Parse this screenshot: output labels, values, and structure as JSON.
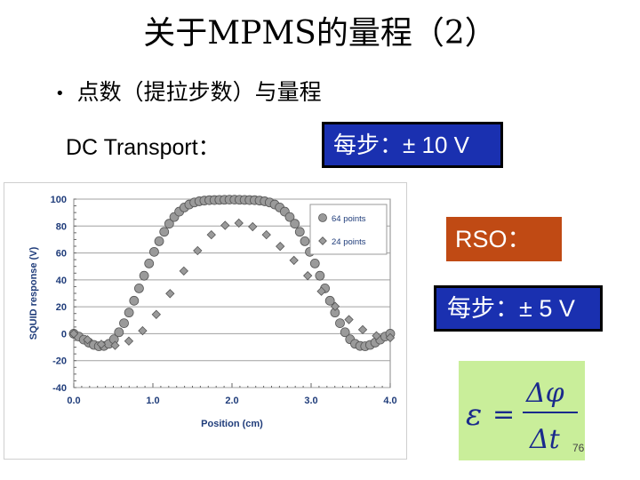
{
  "slide": {
    "title": "关于MPMS的量程（2）",
    "bullet": "点数（提拉步数）与量程",
    "dc_label": "DC Transport：",
    "dc_box": "每步：± 10 V",
    "rso_label": "RSO：",
    "rso_box": "每步：± 5 V",
    "slide_number": "76",
    "formula": {
      "lhs": "ε",
      "eq": "=",
      "num": "Δφ",
      "den": "Δt"
    },
    "colors": {
      "blue_box": "#1a30b0",
      "orange_box": "#c04a14",
      "formula_bg": "#c9ee9a",
      "axis_label": "#1f3c7a"
    }
  },
  "chart_data": {
    "type": "scatter",
    "xlabel": "Position (cm)",
    "ylabel": "SQUID response (V)",
    "xlim": [
      0,
      4
    ],
    "ylim": [
      -40,
      100
    ],
    "xticks": [
      "0.0",
      "1.0",
      "2.0",
      "3.0",
      "4.0"
    ],
    "yticks": [
      "100",
      "80",
      "60",
      "40",
      "20",
      "0",
      "-20",
      "-40"
    ],
    "grid": true,
    "legend_position": "top-right",
    "series": [
      {
        "name": "64 points",
        "marker": "circle",
        "color": "#9a9a9a",
        "x": [
          0.0,
          0.063,
          0.127,
          0.19,
          0.254,
          0.317,
          0.381,
          0.444,
          0.508,
          0.571,
          0.635,
          0.698,
          0.762,
          0.825,
          0.889,
          0.952,
          1.016,
          1.079,
          1.143,
          1.206,
          1.27,
          1.333,
          1.397,
          1.46,
          1.524,
          1.587,
          1.651,
          1.714,
          1.778,
          1.841,
          1.905,
          1.968,
          2.032,
          2.095,
          2.159,
          2.222,
          2.286,
          2.349,
          2.413,
          2.476,
          2.54,
          2.603,
          2.667,
          2.73,
          2.794,
          2.857,
          2.921,
          2.984,
          3.048,
          3.111,
          3.175,
          3.238,
          3.302,
          3.365,
          3.429,
          3.492,
          3.556,
          3.619,
          3.683,
          3.746,
          3.81,
          3.873,
          3.937,
          4.0
        ],
        "y": [
          0.0,
          -2.1,
          -4.4,
          -6.6,
          -8.3,
          -9.3,
          -9.1,
          -7.5,
          -4.1,
          1.1,
          7.8,
          15.7,
          24.5,
          33.7,
          43.1,
          52.2,
          60.8,
          68.7,
          75.7,
          81.7,
          86.7,
          90.7,
          93.8,
          96.0,
          97.5,
          98.4,
          98.9,
          99.2,
          99.3,
          99.4,
          99.5,
          99.6,
          99.6,
          99.5,
          99.4,
          99.3,
          99.2,
          98.9,
          98.4,
          97.5,
          96.0,
          93.8,
          90.7,
          86.7,
          81.7,
          75.7,
          68.7,
          60.8,
          52.2,
          43.1,
          33.7,
          24.5,
          15.7,
          7.8,
          1.1,
          -4.1,
          -7.5,
          -9.1,
          -9.3,
          -8.3,
          -6.6,
          -4.4,
          -2.1,
          0.0
        ]
      },
      {
        "name": "24 points",
        "marker": "diamond",
        "color": "#9a9a9a",
        "x": [
          0.0,
          0.174,
          0.348,
          0.522,
          0.696,
          0.87,
          1.043,
          1.217,
          1.391,
          1.565,
          1.739,
          1.913,
          2.087,
          2.261,
          2.435,
          2.609,
          2.783,
          2.957,
          3.13,
          3.304,
          3.478,
          3.652,
          3.826,
          4.0
        ],
        "y": [
          0.0,
          -4.5,
          -7.8,
          -8.7,
          -5.5,
          2.2,
          14.3,
          29.8,
          46.6,
          61.7,
          73.5,
          80.5,
          82.2,
          79.5,
          73.5,
          64.9,
          54.5,
          43.1,
          31.5,
          20.3,
          10.5,
          3.0,
          -1.5,
          -3.0
        ]
      }
    ]
  }
}
